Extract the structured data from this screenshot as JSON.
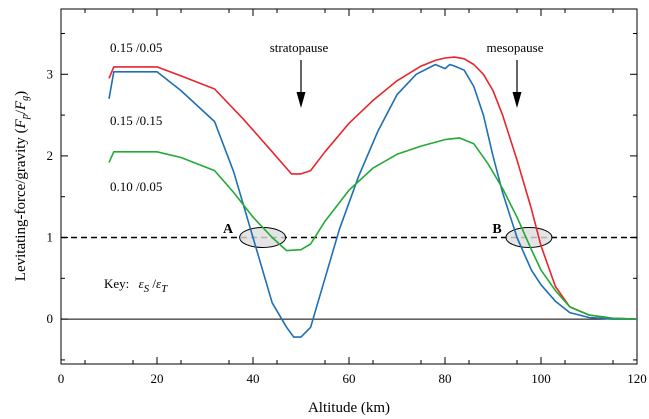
{
  "chart_data": {
    "type": "line",
    "xlabel": "Altitude (km)",
    "ylabel": "Levitating-force/gravity (F_p/F_g)",
    "ylabel_main": "Levitating-force/gravity (",
    "ylabel_f1": "F",
    "ylabel_s1": "p",
    "ylabel_slash": "/",
    "ylabel_f2": "F",
    "ylabel_s2": "g",
    "ylabel_close": ")",
    "xlim": [
      0,
      120
    ],
    "ylim": [
      -0.55,
      3.8
    ],
    "xticks": [
      0,
      20,
      40,
      60,
      80,
      100,
      120
    ],
    "yticks": [
      0,
      1,
      2,
      3
    ],
    "grid": false,
    "reference_line": {
      "y": 1,
      "style": "dashed"
    },
    "zero_line": {
      "y": 0,
      "style": "solid"
    },
    "series": [
      {
        "name": "0.15 /0.05",
        "color": "#e8252b",
        "x": [
          10,
          11,
          15,
          20,
          25,
          32,
          38,
          44,
          48,
          50,
          52,
          55,
          60,
          65,
          70,
          75,
          78,
          80,
          82,
          84,
          86,
          88,
          90,
          92,
          95,
          98,
          100,
          103,
          106,
          110,
          115,
          120
        ],
        "y": [
          2.95,
          3.09,
          3.09,
          3.09,
          2.98,
          2.82,
          2.45,
          2.05,
          1.78,
          1.78,
          1.82,
          2.05,
          2.4,
          2.68,
          2.92,
          3.1,
          3.17,
          3.2,
          3.21,
          3.19,
          3.12,
          3.0,
          2.8,
          2.5,
          1.95,
          1.35,
          0.9,
          0.4,
          0.15,
          0.05,
          0.01,
          0.0
        ]
      },
      {
        "name": "0.15 /0.15",
        "color": "#1f6fb5",
        "x": [
          10,
          11,
          15,
          20,
          25,
          32,
          36,
          40,
          44,
          47,
          48.5,
          50,
          52,
          55,
          58,
          62,
          66,
          70,
          74,
          78,
          80,
          81,
          82,
          84,
          86,
          88,
          90,
          92,
          95,
          98,
          100,
          103,
          106,
          110,
          115,
          120
        ],
        "y": [
          2.7,
          3.03,
          3.03,
          3.03,
          2.8,
          2.42,
          1.8,
          1.0,
          0.2,
          -0.1,
          -0.22,
          -0.22,
          -0.1,
          0.5,
          1.1,
          1.75,
          2.3,
          2.75,
          3.0,
          3.12,
          3.07,
          3.12,
          3.1,
          3.05,
          2.85,
          2.5,
          2.0,
          1.55,
          1.0,
          0.6,
          0.42,
          0.22,
          0.08,
          0.02,
          0.0,
          0.0
        ]
      },
      {
        "name": "0.10 /0.05",
        "color": "#22aa35",
        "x": [
          10,
          11,
          15,
          20,
          25,
          32,
          36,
          40,
          44,
          47,
          50,
          52,
          55,
          60,
          65,
          70,
          75,
          80,
          83,
          86,
          89,
          92,
          95,
          98,
          100,
          103,
          106,
          110,
          115,
          120
        ],
        "y": [
          1.92,
          2.05,
          2.05,
          2.05,
          1.98,
          1.82,
          1.55,
          1.25,
          1.0,
          0.84,
          0.85,
          0.92,
          1.2,
          1.58,
          1.85,
          2.02,
          2.12,
          2.2,
          2.22,
          2.15,
          1.9,
          1.6,
          1.25,
          0.85,
          0.6,
          0.35,
          0.15,
          0.05,
          0.01,
          0.0
        ]
      }
    ],
    "annotations": {
      "stratopause": {
        "text": "stratopause",
        "x": 50
      },
      "mesopause": {
        "text": "mesopause",
        "x": 95
      },
      "A": {
        "text": "A",
        "x": 42,
        "y": 1
      },
      "B": {
        "text": "B",
        "x": 97.5,
        "y": 1
      },
      "key_prefix": "Key:",
      "key_eps": "ε",
      "key_sub_s": "S",
      "key_slash": " /",
      "key_sub_t": "T"
    }
  }
}
